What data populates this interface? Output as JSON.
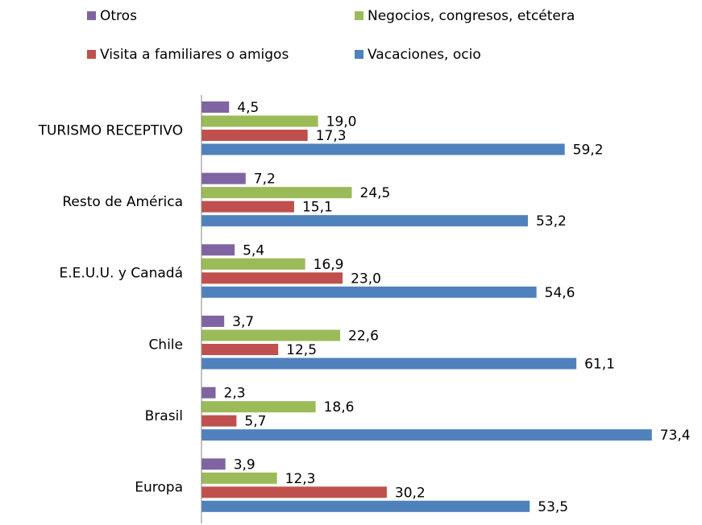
{
  "chart_data": {
    "type": "barh",
    "categories": [
      "TURISMO RECEPTIVO",
      "Resto de América",
      "E.E.U.U. y Canadá",
      "Chile",
      "Brasil",
      "Europa"
    ],
    "series": [
      {
        "name": "Otros",
        "color": "#8064a2",
        "values": [
          4.5,
          7.2,
          5.4,
          3.7,
          2.3,
          3.9
        ],
        "value_labels": [
          "4,5",
          "7,2",
          "5,4",
          "3,7",
          "2,3",
          "3,9"
        ]
      },
      {
        "name": "Negocios, congresos, etcétera",
        "color": "#9bbb59",
        "values": [
          19.0,
          24.5,
          16.9,
          22.6,
          18.6,
          12.3
        ],
        "value_labels": [
          "19,0",
          "24,5",
          "16,9",
          "22,6",
          "18,6",
          "12,3"
        ]
      },
      {
        "name": "Visita a familiares o amigos",
        "color": "#c0504d",
        "values": [
          17.3,
          15.1,
          23.0,
          12.5,
          5.7,
          30.2
        ],
        "value_labels": [
          "17,3",
          "15,1",
          "23,0",
          "12,5",
          "5,7",
          "30,2"
        ]
      },
      {
        "name": "Vacaciones, ocio",
        "color": "#4f81bd",
        "values": [
          59.2,
          53.2,
          54.6,
          61.1,
          73.4,
          53.5
        ],
        "value_labels": [
          "59,2",
          "53,2",
          "54,6",
          "61,1",
          "73,4",
          "53,5"
        ]
      }
    ],
    "xlim": [
      0,
      80
    ]
  }
}
